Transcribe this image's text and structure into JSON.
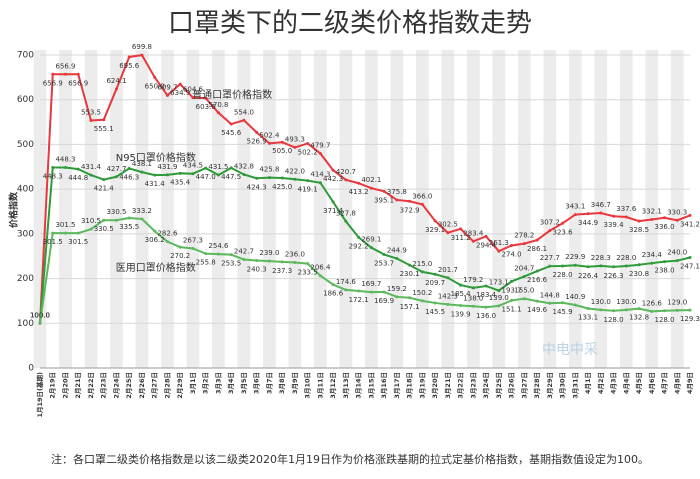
{
  "chart_data": {
    "type": "line",
    "title": "口罩类下的二级类价格指数走势",
    "y_label": "价格指数",
    "note": "注：各口罩二级类价格指数是以该二级类2020年1月19日作为价格涨跌基期的拉式定基价格指数，基期指数值设定为100。",
    "watermark": "中电中采",
    "label_decimals": 1,
    "categories": [
      "1月19日(基期)",
      "2月19日",
      "2月20日",
      "2月21日",
      "2月22日",
      "2月23日",
      "2月24日",
      "2月25日",
      "2月26日",
      "2月27日",
      "2月28日",
      "2月29日",
      "3月1日",
      "3月2日",
      "3月3日",
      "3月4日",
      "3月5日",
      "3月6日",
      "3月7日",
      "3月8日",
      "3月9日",
      "3月10日",
      "3月11日",
      "3月12日",
      "3月13日",
      "3月14日",
      "3月15日",
      "3月16日",
      "3月17日",
      "3月18日",
      "3月19日",
      "3月20日",
      "3月21日",
      "3月22日",
      "3月23日",
      "3月24日",
      "3月25日",
      "3月26日",
      "3月27日",
      "3月28日",
      "3月29日",
      "3月30日",
      "3月31日",
      "4月1日",
      "4月2日",
      "4月3日",
      "4月4日",
      "4月5日",
      "4月6日",
      "4月7日",
      "4月8日",
      "4月9日"
    ],
    "series": [
      {
        "name": "普通口罩价格指数",
        "color": "#e8383d",
        "values": [
          100,
          656.9,
          656.9,
          656.9,
          553.5,
          555.1,
          624.1,
          695.6,
          699.8,
          650.0,
          609.7,
          634.9,
          604.6,
          603.6,
          570.8,
          545.6,
          554.0,
          526.9,
          502.4,
          505.0,
          493.3,
          502.2,
          479.7,
          442.3,
          420.7,
          413.2,
          402.1,
          395.1,
          375.8,
          372.9,
          366.0,
          329.1,
          302.5,
          311.2,
          283.4,
          294.4,
          261.3,
          274.0,
          278.2,
          286.1,
          307.2,
          323.6,
          343.1,
          344.9,
          346.7,
          339.4,
          337.6,
          328.5,
          332.1,
          336.0,
          330.3,
          341.2
        ]
      },
      {
        "name": "N95口罩价格指数",
        "color": "#2e9a3a",
        "values": [
          100,
          448.3,
          448.3,
          444.8,
          431.4,
          421.4,
          427.7,
          446.3,
          438.1,
          431.4,
          431.9,
          435.4,
          434.5,
          447.0,
          431.5,
          447.5,
          432.8,
          424.3,
          425.8,
          425.0,
          422.0,
          419.1,
          414.3,
          371.4,
          327.8,
          292.2,
          269.1,
          253.7,
          244.9,
          230.1,
          215.0,
          209.7,
          201.7,
          185.4,
          179.2,
          183.4,
          173.1,
          193.7,
          204.7,
          216.6,
          227.7,
          228.0,
          229.9,
          226.4,
          228.3,
          226.3,
          228.0,
          230.8,
          234.4,
          238.0,
          240.0,
          247.1
        ]
      },
      {
        "name": "医用口罩价格指数",
        "color": "#5cb85c",
        "values": [
          100,
          301.5,
          301.5,
          301.5,
          310.5,
          330.5,
          330.5,
          335.5,
          333.2,
          306.2,
          282.6,
          270.2,
          267.3,
          255.8,
          254.6,
          253.5,
          242.7,
          240.3,
          239.0,
          237.3,
          236.0,
          233.5,
          206.4,
          186.6,
          174.6,
          172.1,
          169.7,
          169.9,
          159.2,
          157.1,
          150.2,
          145.5,
          142.3,
          139.9,
          138.0,
          136.0,
          139.0,
          151.1,
          155.0,
          149.6,
          144.8,
          145.9,
          140.9,
          133.1,
          130.0,
          128.0,
          130.0,
          132.8,
          126.6,
          128.0,
          129.0,
          129.3
        ]
      }
    ],
    "ylim": [
      0,
      700
    ],
    "yticks": [
      0,
      100,
      200,
      300,
      400,
      500,
      600,
      700
    ],
    "grid": true
  }
}
